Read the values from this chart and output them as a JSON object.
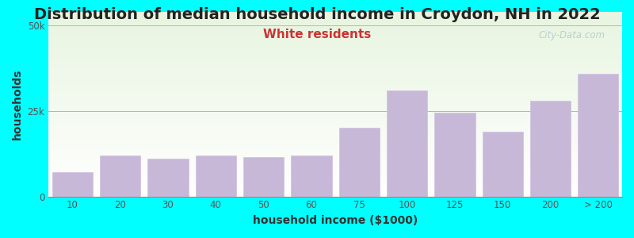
{
  "title": "Distribution of median household income in Croydon, NH in 2022",
  "subtitle": "White residents",
  "xlabel": "household income ($1000)",
  "ylabel": "households",
  "background_color": "#00FFFF",
  "plot_bg_top": "#e8f5e0",
  "plot_bg_bottom": "#ffffff",
  "bar_color": "#c8b8d8",
  "bar_edge_color": "#d0c0e0",
  "categories": [
    "10",
    "20",
    "30",
    "40",
    "50",
    "60",
    "75",
    "100",
    "125",
    "150",
    "200",
    "> 200"
  ],
  "values": [
    7000,
    12000,
    11000,
    12000,
    11500,
    12000,
    20000,
    31000,
    24500,
    19000,
    28000,
    36000
  ],
  "yticks": [
    0,
    25000,
    50000
  ],
  "ytick_labels": [
    "0",
    "25k",
    "50k"
  ],
  "ylim": [
    0,
    54000
  ],
  "title_fontsize": 14,
  "subtitle_fontsize": 11,
  "subtitle_color": "#cc3333",
  "axis_label_fontsize": 10,
  "tick_fontsize": 8.5,
  "watermark": "City-Data.com"
}
